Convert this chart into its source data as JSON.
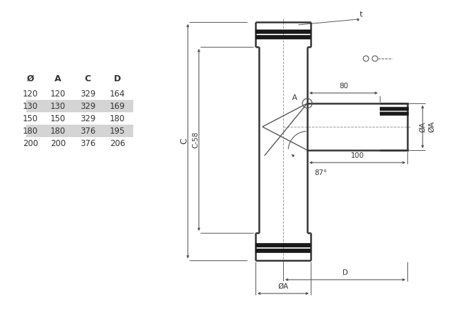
{
  "bg_color": "#ffffff",
  "line_color": "#555555",
  "dark_color": "#333333",
  "dim_color": "#555555",
  "table_headers": [
    "Ø",
    "A",
    "C",
    "D"
  ],
  "table_rows": [
    [
      120,
      120,
      329,
      164
    ],
    [
      130,
      130,
      329,
      169
    ],
    [
      150,
      150,
      329,
      180
    ],
    [
      180,
      180,
      376,
      195
    ],
    [
      200,
      200,
      376,
      206
    ]
  ],
  "highlighted_rows": [
    1,
    3
  ],
  "labels": {
    "t": "t",
    "A": "A",
    "C": "C",
    "C58": "C-58",
    "phiA": "ØA",
    "phiA_bot": "ØA",
    "D": "D",
    "d80": "80",
    "d100": "100",
    "ang": "87°"
  }
}
